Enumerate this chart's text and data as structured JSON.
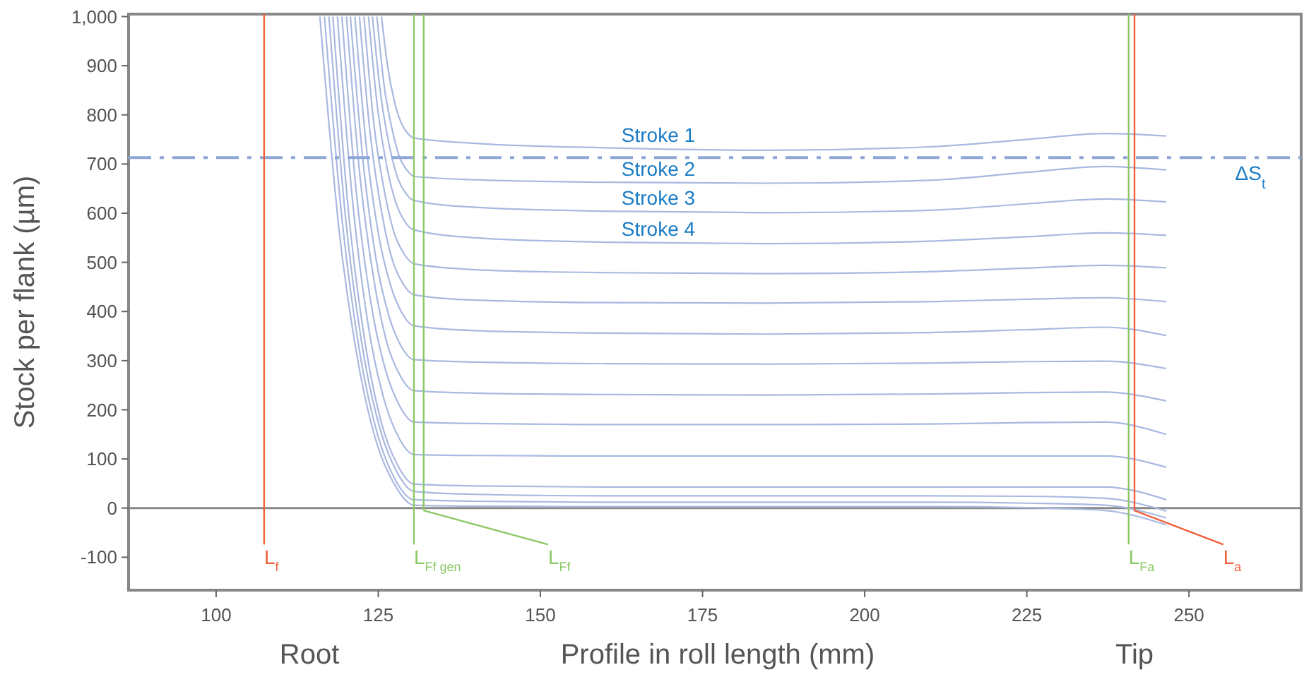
{
  "chart_data": {
    "type": "line",
    "xlabel": "Profile in roll length (mm)",
    "ylabel": "Stock per flank (µm)",
    "xlim": [
      86.5,
      267.3
    ],
    "ylim": [
      -167,
      1005
    ],
    "xticks": [
      100,
      125,
      150,
      175,
      200,
      225,
      250
    ],
    "yticks": [
      -100,
      0,
      100,
      200,
      300,
      400,
      500,
      600,
      700,
      800,
      900,
      {
        "value": 1000,
        "label": "1,000"
      }
    ],
    "line_style": "solid",
    "series": [
      {
        "name": "Stroke 1",
        "color": "#a9b8e0",
        "x": [
          125.5,
          126.5,
          127.5,
          128.5,
          129.5,
          130.5,
          140,
          160,
          185,
          210,
          225,
          237,
          246.5
        ],
        "values": [
          1000,
          894,
          827,
          785,
          763,
          753,
          742,
          733,
          728,
          735,
          750,
          762,
          757
        ]
      },
      {
        "name": "Stroke 2",
        "color": "#a9b8e0",
        "x": [
          124.8,
          125.9,
          127.1,
          128.2,
          129.4,
          130.5,
          140,
          160,
          185,
          210,
          225,
          237,
          246.5
        ],
        "values": [
          1000,
          860,
          773,
          717,
          688,
          675,
          668,
          663,
          661,
          667,
          683,
          695,
          688
        ]
      },
      {
        "name": "Stroke 3",
        "color": "#a9b8e0",
        "x": [
          124.1,
          125.4,
          126.7,
          127.9,
          129.2,
          130.5,
          140,
          160,
          185,
          210,
          225,
          237,
          246.5
        ],
        "values": [
          1000,
          839,
          738,
          675,
          641,
          626,
          612,
          604,
          601,
          606,
          619,
          629,
          623
        ]
      },
      {
        "name": "Stroke 4",
        "color": "#a9b8e0",
        "x": [
          123.5,
          124.9,
          126.3,
          127.7,
          129.1,
          130.5,
          140,
          160,
          185,
          210,
          225,
          237,
          246.5
        ],
        "values": [
          1000,
          813,
          696,
          622,
          583,
          566,
          550,
          541,
          538,
          543,
          552,
          560,
          555
        ]
      },
      {
        "color": "#a9b8e0",
        "x": [
          122.8,
          124.3,
          125.9,
          127.4,
          129.0,
          130.5,
          140,
          160,
          185,
          210,
          225,
          237,
          246.5
        ],
        "values": [
          1000,
          784,
          648,
          562,
          517,
          497,
          485,
          479,
          477,
          481,
          488,
          494,
          489
        ]
      },
      {
        "color": "#a9b8e0",
        "x": [
          122.1,
          123.8,
          125.5,
          127.1,
          128.8,
          130.5,
          140,
          160,
          185,
          210,
          225,
          237,
          246.5
        ],
        "values": [
          1000,
          757,
          604,
          508,
          457,
          434,
          423,
          418,
          417,
          420,
          425,
          428,
          420
        ]
      },
      {
        "color": "#a9b8e0",
        "x": [
          121.4,
          123.2,
          125.0,
          126.9,
          128.7,
          130.5,
          140,
          160,
          185,
          210,
          225,
          237,
          246.5
        ],
        "values": [
          1000,
          730,
          560,
          453,
          396,
          371,
          361,
          356,
          354,
          357,
          363,
          368,
          351
        ]
      },
      {
        "color": "#a9b8e0",
        "x": [
          120.7,
          122.7,
          124.6,
          126.6,
          128.5,
          130.5,
          140,
          160,
          185,
          210,
          225,
          237,
          246.5
        ],
        "values": [
          1000,
          700,
          511,
          393,
          330,
          302,
          297,
          294,
          293,
          295,
          298,
          299,
          284
        ]
      },
      {
        "color": "#a9b8e0",
        "x": [
          120.1,
          122.2,
          124.3,
          126.3,
          128.4,
          130.5,
          140,
          160,
          185,
          210,
          225,
          237,
          246.5
        ],
        "values": [
          1000,
          673,
          467,
          338,
          269,
          239,
          234,
          231,
          230,
          232,
          235,
          236,
          218
        ]
      },
      {
        "color": "#a9b8e0",
        "x": [
          119.4,
          121.6,
          123.8,
          126.1,
          128.3,
          130.5,
          140,
          160,
          185,
          210,
          225,
          237,
          246.5
        ],
        "values": [
          1000,
          645,
          423,
          282,
          208,
          175,
          172,
          170,
          170,
          171,
          174,
          175,
          150
        ]
      },
      {
        "color": "#a9b8e0",
        "x": [
          118.7,
          121.1,
          123.4,
          125.8,
          128.1,
          130.5,
          140,
          160,
          185,
          210,
          225,
          237,
          246.5
        ],
        "values": [
          1000,
          617,
          376,
          225,
          145,
          109,
          107,
          106,
          106,
          106,
          106,
          106,
          83
        ]
      },
      {
        "color": "#a9b8e0",
        "x": [
          118.0,
          120.5,
          123.0,
          125.5,
          128.0,
          130.5,
          140,
          160,
          185,
          210,
          225,
          237,
          246.5
        ],
        "values": [
          1000,
          591,
          334,
          173,
          87,
          49,
          45,
          43,
          43,
          43,
          43,
          43,
          17
        ]
      },
      {
        "color": "#a9b8e0",
        "x": [
          117.4,
          120.0,
          122.6,
          125.3,
          127.9,
          130.5,
          140,
          160,
          185,
          210,
          225,
          237,
          246.5
        ],
        "values": [
          1000,
          585,
          324,
          160,
          73,
          34,
          28,
          25,
          25,
          25,
          24,
          20,
          -6
        ]
      },
      {
        "color": "#a9b8e0",
        "x": [
          116.7,
          119.5,
          122.2,
          125.0,
          127.7,
          130.5,
          140,
          160,
          185,
          210,
          225,
          237,
          246.5
        ],
        "values": [
          1000,
          577,
          312,
          145,
          56,
          17,
          14,
          12,
          12,
          12,
          10,
          6,
          -20
        ]
      },
      {
        "color": "#a9b8e0",
        "x": [
          116.0,
          118.9,
          121.8,
          124.7,
          127.6,
          130.5,
          140,
          160,
          185,
          210,
          225,
          237,
          246.5
        ],
        "values": [
          1000,
          573,
          304,
          135,
          46,
          6,
          4,
          3,
          3,
          3,
          1,
          -5,
          -34
        ]
      }
    ],
    "ref_lines": [
      {
        "axis": "y",
        "value": 713,
        "label": "ΔS$_{t}$",
        "color": "#8ea6d8",
        "line_style": "dashed"
      },
      {
        "axis": "x",
        "value": 107.4,
        "label": "L$_{f}$",
        "color": "#f0603c"
      },
      {
        "axis": "x",
        "value": 130.5,
        "label": "L$_{Ff gen}$",
        "color": "#8cc866"
      },
      {
        "axis": "x",
        "value": 132.0,
        "label": "L$_{Ff}$",
        "color": "#8cc866"
      },
      {
        "axis": "x",
        "value": 240.7,
        "label": "L$_{Fa}$",
        "color": "#8cc866"
      },
      {
        "axis": "x",
        "value": 241.6,
        "label": "L$_{a}$",
        "color": "#f0603c"
      }
    ],
    "annotations": [
      "Root",
      "Tip"
    ]
  }
}
